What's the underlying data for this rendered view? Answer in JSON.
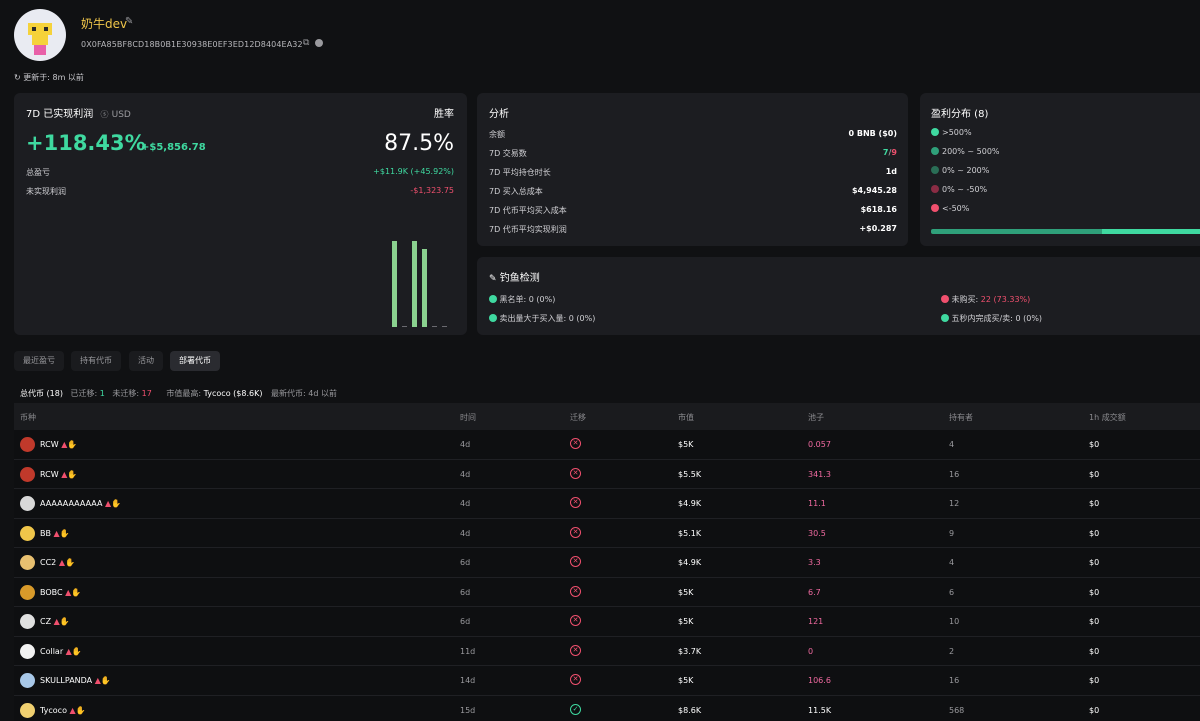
{
  "profile": {
    "name": "奶牛dev",
    "address": "0X0FA85BF8CD18B0B1E30938E0EF3ED12D8404EA32",
    "updated": "更新于: 8m 以前"
  },
  "profit": {
    "title": "7D 已实现利润",
    "currency": "USD",
    "winrate_label": "胜率",
    "percent": "+118.43%",
    "amount": "+$5,856.78",
    "winrate": "87.5%",
    "total_pnl_label": "总盈亏",
    "total_pnl_value": "+$11.9K (+45.92%)",
    "unrealized_label": "未实现利润",
    "unrealized_value": "-$1,323.75",
    "bars": [
      1.0,
      0,
      1.0,
      0.91,
      0,
      0
    ]
  },
  "analysis": {
    "title": "分析",
    "rows": [
      {
        "label": "余额",
        "value": "0 BNB ($0)"
      },
      {
        "label": "7D 交易数",
        "value_green": "7",
        "value_sep": "/",
        "value_red": "9"
      },
      {
        "label": "7D 平均持仓时长",
        "value": "1d"
      },
      {
        "label": "7D 买入总成本",
        "value": "$4,945.28"
      },
      {
        "label": "7D 代币平均买入成本",
        "value": "$618.16"
      },
      {
        "label": "7D 代币平均实现利润",
        "value": "+$0.287"
      }
    ]
  },
  "distribution": {
    "title": "盈利分布 (8)",
    "items": [
      {
        "label": ">500%",
        "color": "#3fd9a0"
      },
      {
        "label": "200% ~ 500%",
        "color": "#2fa07a"
      },
      {
        "label": "0% ~ 200%",
        "color": "#2a6e56"
      },
      {
        "label": "0% ~ -50%",
        "color": "#8a2c44"
      },
      {
        "label": "<-50%",
        "color": "#f0506e"
      }
    ]
  },
  "phishing": {
    "title": "钓鱼检测",
    "blacklist": "黑名单: 0 (0%)",
    "sold_more": "卖出量大于买入量: 0 (0%)",
    "not_bought_label": "未购买:",
    "not_bought_value": "22 (73.33%)",
    "fast_trade": "五秒内完成买/卖: 0 (0%)"
  },
  "tabs": [
    "最近盈亏",
    "持有代币",
    "活动",
    "部署代币"
  ],
  "summary": {
    "total": "总代币 (18)",
    "migrated_label": "已迁移:",
    "migrated": "1",
    "not_migrated_label": "未迁移:",
    "not_migrated": "17",
    "top_label": "市值最高:",
    "top_value": "Tycoco ($8.6K)",
    "latest": "最新代币: 4d 以前"
  },
  "table": {
    "headers": [
      "币种",
      "时间",
      "迁移",
      "市值",
      "池子",
      "持有者",
      "1h 成交额"
    ],
    "rows": [
      {
        "name": "RCW",
        "time": "4d",
        "migrated": false,
        "mcap": "$5K",
        "pool": "0.057",
        "holders": "4",
        "vol": "$0",
        "icon_color": "#c0392b"
      },
      {
        "name": "RCW",
        "time": "4d",
        "migrated": false,
        "mcap": "$5.5K",
        "pool": "341.3",
        "holders": "16",
        "vol": "$0",
        "icon_color": "#c0392b"
      },
      {
        "name": "AAAAAAAAAAA",
        "time": "4d",
        "migrated": false,
        "mcap": "$4.9K",
        "pool": "11.1",
        "holders": "12",
        "vol": "$0",
        "icon_color": "#d8d8d8"
      },
      {
        "name": "BB",
        "time": "4d",
        "migrated": false,
        "mcap": "$5.1K",
        "pool": "30.5",
        "holders": "9",
        "vol": "$0",
        "icon_color": "#f0c64a"
      },
      {
        "name": "CC2",
        "time": "6d",
        "migrated": false,
        "mcap": "$4.9K",
        "pool": "3.3",
        "holders": "4",
        "vol": "$0",
        "icon_color": "#e8c070"
      },
      {
        "name": "BOBC",
        "time": "6d",
        "migrated": false,
        "mcap": "$5K",
        "pool": "6.7",
        "holders": "6",
        "vol": "$0",
        "icon_color": "#d89a2a"
      },
      {
        "name": "CZ",
        "time": "6d",
        "migrated": false,
        "mcap": "$5K",
        "pool": "121",
        "holders": "10",
        "vol": "$0",
        "icon_color": "#e0e0e0"
      },
      {
        "name": "Collar",
        "time": "11d",
        "migrated": false,
        "mcap": "$3.7K",
        "pool": "0",
        "holders": "2",
        "vol": "$0",
        "icon_color": "#f2f2f2"
      },
      {
        "name": "SKULLPANDA",
        "time": "14d",
        "migrated": false,
        "mcap": "$5K",
        "pool": "106.6",
        "holders": "16",
        "vol": "$0",
        "icon_color": "#a8c8e8"
      },
      {
        "name": "Tycoco",
        "time": "15d",
        "migrated": true,
        "mcap": "$8.6K",
        "pool": "11.5K",
        "holders": "568",
        "vol": "$0",
        "icon_color": "#f0d070"
      }
    ]
  }
}
